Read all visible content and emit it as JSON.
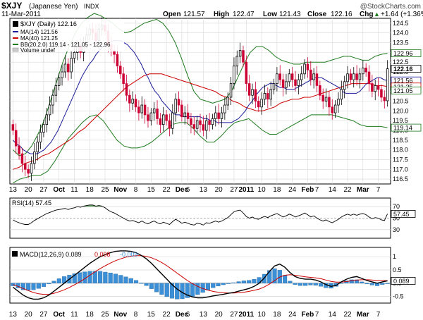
{
  "header": {
    "symbol": "$XJY",
    "name": "(Japanese Yen)",
    "exchange": "INDX",
    "date": "11-Mar-2011",
    "open_label": "Open",
    "open": "121.57",
    "high_label": "High",
    "high": "122.47",
    "low_label": "Low",
    "low": "121.43",
    "close_label": "Close",
    "close": "122.16",
    "chg_label": "Chg",
    "chg": "+1.64 (+1.36%)",
    "chg_arrow": "▲",
    "watermark": "@StockCharts.com"
  },
  "colors": {
    "up": "#000000",
    "down": "#cc0033",
    "ma14": "#1a1a99",
    "ma40": "#cc0000",
    "bb": "#1d7a1d",
    "grid": "#d8d8d8",
    "rsi_fill": "#2e7d2e",
    "hist": "#3b8fd6",
    "signal": "#cc0000"
  },
  "chart_data": [
    {
      "type": "candlestick",
      "title": "$XJY (Daily) 122.16",
      "legend": [
        {
          "label": "$XJY (Daily) 122.16",
          "color": "#000000"
        },
        {
          "label": "MA(14) 121.56",
          "color": "#1a1a99"
        },
        {
          "label": "MA(40) 121.25",
          "color": "#cc0000"
        },
        {
          "label": "BB(20,2.0) 119.14 - 121.05 - 122.96",
          "color": "#1d7a1d"
        },
        {
          "label": "Volume undef",
          "color": "#888888"
        }
      ],
      "ylim": [
        116.25,
        124.75
      ],
      "yticks": [
        116.5,
        117.0,
        117.5,
        118.0,
        118.5,
        119.0,
        119.5,
        120.0,
        120.5,
        121.0,
        121.5,
        122.0,
        122.5,
        123.0,
        123.5,
        124.0,
        124.5
      ],
      "xlabels": [
        {
          "i": 0,
          "t": "13"
        },
        {
          "i": 5,
          "t": "20"
        },
        {
          "i": 10,
          "t": "27"
        },
        {
          "i": 15,
          "t": "Oct"
        },
        {
          "i": 20,
          "t": "11"
        },
        {
          "i": 25,
          "t": "18"
        },
        {
          "i": 30,
          "t": "25"
        },
        {
          "i": 35,
          "t": "Nov"
        },
        {
          "i": 40,
          "t": "8"
        },
        {
          "i": 45,
          "t": "15"
        },
        {
          "i": 50,
          "t": "22"
        },
        {
          "i": 55,
          "t": "Dec"
        },
        {
          "i": 57,
          "t": "6"
        },
        {
          "i": 62,
          "t": "13"
        },
        {
          "i": 67,
          "t": "20"
        },
        {
          "i": 72,
          "t": "27"
        },
        {
          "i": 76,
          "t": "2011"
        },
        {
          "i": 81,
          "t": "10"
        },
        {
          "i": 86,
          "t": "18"
        },
        {
          "i": 91,
          "t": "24"
        },
        {
          "i": 96,
          "t": "Feb"
        },
        {
          "i": 99,
          "t": "7"
        },
        {
          "i": 104,
          "t": "14"
        },
        {
          "i": 109,
          "t": "22"
        },
        {
          "i": 114,
          "t": "Mar"
        },
        {
          "i": 119,
          "t": "7"
        }
      ],
      "last_labels": [
        {
          "v": 122.96,
          "t": "122.96",
          "color": "#1d7a1d"
        },
        {
          "v": 122.16,
          "t": "122.16",
          "color": "#000000"
        },
        {
          "v": 121.56,
          "t": "121.56",
          "color": "#1a1a99"
        },
        {
          "v": 121.25,
          "t": "121.25",
          "color": "#cc0000"
        },
        {
          "v": 121.05,
          "t": "121.05",
          "color": "#1d7a1d"
        },
        {
          "v": 119.14,
          "t": "119.14",
          "color": "#1d7a1d"
        }
      ],
      "closes": [
        119.0,
        118.2,
        117.8,
        117.3,
        117.0,
        116.8,
        117.3,
        117.9,
        118.4,
        118.9,
        119.3,
        119.8,
        120.3,
        120.8,
        121.3,
        121.7,
        122.0,
        122.4,
        122.0,
        122.7,
        123.0,
        123.3,
        123.0,
        123.5,
        123.9,
        124.2,
        124.0,
        123.6,
        124.2,
        124.4,
        124.1,
        123.4,
        123.1,
        122.9,
        122.3,
        121.9,
        121.4,
        120.8,
        120.4,
        120.6,
        120.2,
        119.9,
        120.3,
        119.8,
        119.5,
        119.9,
        120.1,
        119.6,
        119.3,
        119.8,
        119.5,
        119.1,
        119.9,
        120.6,
        120.3,
        119.7,
        119.9,
        119.6,
        119.3,
        119.1,
        119.5,
        119.3,
        119.0,
        119.5,
        119.3,
        119.6,
        119.9,
        119.6,
        119.9,
        120.3,
        120.7,
        121.4,
        122.3,
        122.8,
        123.1,
        122.5,
        121.4,
        120.8,
        121.1,
        120.5,
        120.2,
        120.6,
        120.9,
        120.6,
        121.1,
        121.4,
        121.9,
        121.6,
        121.2,
        121.5,
        121.9,
        121.6,
        121.3,
        121.6,
        121.9,
        122.4,
        122.1,
        121.6,
        121.9,
        121.3,
        120.8,
        120.5,
        120.7,
        120.2,
        119.9,
        120.3,
        120.6,
        121.1,
        121.5,
        121.9,
        121.6,
        121.9,
        121.6,
        121.9,
        122.2,
        122.0,
        121.4,
        121.0,
        121.3,
        121.1,
        120.7,
        120.52,
        122.16
      ],
      "ma14": [
        118.5,
        118.3,
        118.2,
        118.0,
        117.9,
        117.8,
        117.8,
        117.8,
        117.9,
        118.0,
        118.2,
        118.4,
        118.7,
        119.0,
        119.4,
        119.8,
        120.2,
        120.6,
        121.0,
        121.4,
        121.8,
        122.1,
        122.4,
        122.6,
        122.9,
        123.1,
        123.3,
        123.4,
        123.5,
        123.6,
        123.6,
        123.6,
        123.5,
        123.4,
        123.2,
        123.0,
        122.7,
        122.4,
        122.0,
        121.7,
        121.3,
        121.0,
        120.8,
        120.5,
        120.3,
        120.1,
        119.9,
        119.8,
        119.8,
        119.7,
        119.7,
        119.7,
        119.7,
        119.7,
        119.7,
        119.6,
        119.6,
        119.5,
        119.5,
        119.4,
        119.4,
        119.4,
        119.4,
        119.4,
        119.5,
        119.6,
        119.8,
        120.0,
        120.3,
        120.5,
        120.8,
        121.0,
        121.2,
        121.3,
        121.4,
        121.4,
        121.3,
        121.2,
        121.2,
        121.1,
        121.1,
        121.1,
        121.2,
        121.3,
        121.4,
        121.5,
        121.6,
        121.7,
        121.7,
        121.7,
        121.6,
        121.5,
        121.4,
        121.3,
        121.2,
        121.0,
        120.9,
        120.9,
        120.9,
        120.9,
        121.0,
        121.2,
        121.4,
        121.5,
        121.6,
        121.7,
        121.7,
        121.6,
        121.56
      ],
      "ma40": [
        117.0,
        117.1,
        117.3,
        117.4,
        117.5,
        117.7,
        117.8,
        118.0,
        118.2,
        118.4,
        118.6,
        118.9,
        119.1,
        119.4,
        119.7,
        120.0,
        120.3,
        120.6,
        120.9,
        121.2,
        121.4,
        121.6,
        121.8,
        121.9,
        121.9,
        121.9,
        121.8,
        121.7,
        121.6,
        121.5,
        121.4,
        121.3,
        121.2,
        121.1,
        121.0,
        120.8,
        120.7,
        120.5,
        120.4,
        120.2,
        120.1,
        120.0,
        120.0,
        120.1,
        120.2,
        120.4,
        120.5,
        120.6,
        120.6,
        120.7,
        120.7,
        120.8,
        120.9,
        121.0,
        121.1,
        121.2,
        121.3,
        121.4,
        121.4,
        121.4,
        121.4,
        121.3,
        121.3,
        121.25
      ],
      "bb_upper": [
        118.0,
        117.7,
        117.8,
        118.2,
        118.8,
        119.5,
        120.5,
        121.5,
        122.5,
        123.3,
        124.0,
        124.5,
        124.8,
        125.0,
        124.9,
        124.7,
        124.5,
        124.2,
        124.0,
        124.1,
        124.3,
        124.5,
        124.6,
        124.7,
        124.5,
        124.1,
        123.5,
        122.7,
        121.8,
        121.0,
        120.6,
        120.5,
        120.4,
        120.5,
        120.6,
        121.0,
        121.7,
        122.4,
        123.0,
        123.3,
        123.3,
        123.1,
        122.8,
        122.6,
        122.5,
        122.4,
        122.4,
        122.5,
        122.5,
        122.5,
        122.5,
        122.6,
        122.7,
        122.8,
        122.8,
        122.7,
        122.6,
        122.6,
        122.8,
        122.9,
        122.96
      ],
      "bb_lower": [
        116.3,
        116.5,
        116.6,
        116.7,
        116.7,
        116.9,
        117.4,
        118.0,
        118.6,
        119.0,
        119.4,
        119.7,
        119.8,
        119.5,
        119.0,
        118.5,
        118.2,
        118.1,
        118.1,
        118.2,
        118.4,
        118.7,
        119.0,
        119.3,
        119.4,
        119.4,
        119.1,
        118.7,
        118.4,
        118.4,
        118.7,
        119.1,
        119.4,
        119.5,
        119.6,
        119.3,
        119.0,
        118.8,
        118.8,
        119.0,
        119.2,
        119.4,
        119.6,
        119.8,
        119.8,
        119.8,
        119.8,
        119.7,
        119.6,
        119.5,
        119.3,
        119.2,
        119.2,
        119.2,
        119.14
      ]
    },
    {
      "type": "line",
      "title": "RSI(14) 57.45",
      "ylim": [
        15,
        85
      ],
      "yticks": [
        30,
        50,
        70
      ],
      "levels": [
        30,
        70
      ],
      "last_label": "57.45",
      "values": [
        47,
        44,
        42,
        40,
        39,
        39,
        42,
        46,
        49,
        52,
        55,
        58,
        60,
        62,
        64,
        65,
        66,
        67,
        65,
        67,
        68,
        70,
        69,
        71,
        72,
        73,
        73,
        71,
        72,
        71,
        68,
        64,
        61,
        59,
        56,
        53,
        50,
        47,
        45,
        46,
        44,
        42,
        45,
        42,
        40,
        43,
        45,
        42,
        40,
        43,
        41,
        39,
        44,
        48,
        45,
        41,
        43,
        41,
        39,
        38,
        41,
        40,
        38,
        42,
        41,
        43,
        45,
        43,
        45,
        48,
        51,
        56,
        61,
        63,
        64,
        59,
        53,
        50,
        52,
        49,
        48,
        51,
        53,
        51,
        54,
        56,
        58,
        55,
        52,
        54,
        57,
        55,
        52,
        54,
        56,
        59,
        56,
        52,
        54,
        50,
        47,
        45,
        47,
        44,
        42,
        45,
        48,
        52,
        55,
        57,
        55,
        57,
        55,
        57,
        58,
        56,
        52,
        49,
        51,
        50,
        47,
        46,
        57.45
      ]
    },
    {
      "type": "line",
      "title": "MACD(12,26,9) 0.089, 0.098, -0.009",
      "legend": [
        {
          "label": "MACD(12,26,9) 0.089",
          "color": "#000000"
        },
        {
          "label": "0.098",
          "color": "#cc0000"
        },
        {
          "label": "-0.009",
          "color": "#3b8fd6"
        }
      ],
      "ylim": [
        -0.75,
        1.35
      ],
      "yticks": [
        -0.5,
        0.0,
        0.5,
        1.0
      ],
      "last_label": "0.089",
      "macd": [
        -0.15,
        -0.3,
        -0.45,
        -0.55,
        -0.6,
        -0.6,
        -0.55,
        -0.45,
        -0.3,
        -0.15,
        0.0,
        0.15,
        0.3,
        0.45,
        0.6,
        0.75,
        0.88,
        1.0,
        1.08,
        1.15,
        1.2,
        1.22,
        1.22,
        1.2,
        1.15,
        1.05,
        0.92,
        0.75,
        0.55,
        0.35,
        0.15,
        -0.05,
        -0.22,
        -0.35,
        -0.45,
        -0.52,
        -0.55,
        -0.55,
        -0.52,
        -0.48,
        -0.45,
        -0.42,
        -0.38,
        -0.35,
        -0.3,
        -0.25,
        -0.2,
        -0.12,
        0.0,
        0.2,
        0.45,
        0.65,
        0.72,
        0.6,
        0.4,
        0.25,
        0.18,
        0.15,
        0.15,
        0.12,
        0.05,
        -0.05,
        -0.12,
        -0.08,
        0.05,
        0.15,
        0.22,
        0.25,
        0.18,
        0.1,
        0.05,
        0.0,
        0.05,
        0.089
      ],
      "signal": [
        -0.05,
        -0.12,
        -0.2,
        -0.28,
        -0.35,
        -0.4,
        -0.42,
        -0.42,
        -0.38,
        -0.32,
        -0.25,
        -0.16,
        -0.06,
        0.05,
        0.17,
        0.3,
        0.43,
        0.55,
        0.66,
        0.76,
        0.85,
        0.92,
        0.98,
        1.02,
        1.04,
        1.04,
        1.01,
        0.96,
        0.88,
        0.78,
        0.66,
        0.52,
        0.38,
        0.24,
        0.1,
        -0.02,
        -0.12,
        -0.2,
        -0.26,
        -0.31,
        -0.34,
        -0.36,
        -0.37,
        -0.37,
        -0.36,
        -0.34,
        -0.31,
        -0.27,
        -0.22,
        -0.14,
        -0.03,
        0.1,
        0.23,
        0.3,
        0.32,
        0.3,
        0.27,
        0.24,
        0.22,
        0.2,
        0.17,
        0.12,
        0.07,
        0.04,
        0.04,
        0.06,
        0.09,
        0.12,
        0.13,
        0.13,
        0.12,
        0.1,
        0.1,
        0.098
      ]
    }
  ]
}
